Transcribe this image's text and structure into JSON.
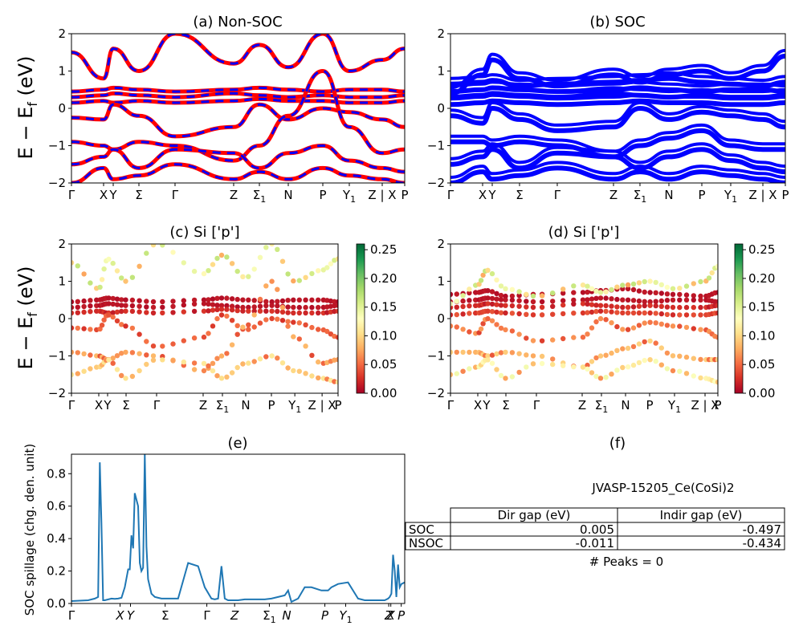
{
  "chart_data": [
    {
      "type": "line",
      "title": "(a) Non-SOC",
      "ylabel": "E − E_f (eV)",
      "ylim": [
        -2,
        2
      ],
      "yticks": [
        "2",
        "1",
        "0",
        "−1",
        "−2"
      ],
      "xticks": [
        "Γ",
        "X",
        "Y",
        "Σ",
        "Γ",
        "Z",
        "Σ",
        "N",
        "P",
        "Y",
        "Z | X",
        "P"
      ],
      "xtick_subscripts": {
        "6": "1",
        "9": "1"
      },
      "series": [
        {
          "color": "#ff0000",
          "style": "solid"
        },
        {
          "color": "#0000ff",
          "style": "dashed"
        }
      ],
      "bands": [
        [
          0.45,
          0.5,
          0.55,
          0.5,
          0.45,
          0.5,
          0.55,
          0.5,
          0.45,
          0.5,
          0.5,
          0.45
        ],
        [
          0.3,
          0.35,
          0.4,
          0.35,
          0.3,
          0.4,
          0.35,
          0.3,
          0.35,
          0.3,
          0.3,
          0.35
        ],
        [
          0.15,
          0.2,
          0.15,
          0.2,
          0.15,
          0.2,
          0.25,
          0.2,
          0.2,
          0.15,
          0.15,
          0.2
        ],
        [
          -0.25,
          -0.3,
          0.1,
          -0.2,
          -0.75,
          -0.5,
          0.1,
          -0.3,
          0.0,
          -0.1,
          -0.3,
          -0.5
        ],
        [
          -0.9,
          -1.0,
          -1.1,
          -0.9,
          -1.0,
          -1.4,
          -1.0,
          -0.2,
          1.0,
          -0.5,
          -1.2,
          -1.1
        ],
        [
          -1.5,
          -1.3,
          -1.1,
          -1.6,
          -1.1,
          -1.2,
          -1.6,
          -1.2,
          -1.0,
          -1.4,
          -1.6,
          -1.7
        ],
        [
          -2.0,
          -1.6,
          -1.9,
          -1.8,
          -1.5,
          -1.9,
          -1.7,
          -1.9,
          -1.6,
          -1.8,
          -1.9,
          -2.0
        ],
        [
          1.5,
          0.8,
          1.6,
          1.0,
          2.0,
          1.2,
          1.7,
          1.1,
          2.0,
          1.0,
          1.3,
          1.6
        ]
      ]
    },
    {
      "type": "line",
      "title": "(b) SOC",
      "ylim": [
        -2,
        2
      ],
      "yticks": [
        "2",
        "1",
        "0",
        "−1",
        "−2"
      ],
      "xticks": [
        "Γ",
        "X",
        "Y",
        "Σ",
        "Γ",
        "Z",
        "Σ",
        "N",
        "P",
        "Y",
        "Z | X",
        "P"
      ],
      "xtick_subscripts": {
        "6": "1",
        "9": "1"
      },
      "series": [
        {
          "color": "#0000ff",
          "style": "solid"
        }
      ],
      "bands": [
        [
          0.65,
          0.7,
          0.75,
          0.6,
          0.65,
          0.7,
          0.75,
          0.8,
          0.7,
          0.65,
          0.6,
          0.7
        ],
        [
          0.45,
          0.5,
          0.55,
          0.5,
          0.45,
          0.5,
          0.55,
          0.5,
          0.45,
          0.5,
          0.5,
          0.45
        ],
        [
          0.3,
          0.35,
          0.4,
          0.35,
          0.3,
          0.4,
          0.35,
          0.3,
          0.35,
          0.3,
          0.3,
          0.35
        ],
        [
          0.1,
          0.15,
          0.2,
          0.15,
          0.1,
          0.15,
          0.2,
          0.15,
          0.15,
          0.1,
          0.1,
          0.15
        ],
        [
          -0.2,
          -0.4,
          0.0,
          -0.3,
          -0.6,
          -0.5,
          0.0,
          -0.3,
          -0.1,
          -0.2,
          -0.3,
          -0.5
        ],
        [
          -0.9,
          -0.9,
          -1.0,
          -0.9,
          -1.0,
          -1.3,
          -1.0,
          -0.8,
          -0.6,
          -1.0,
          -1.1,
          -1.1
        ],
        [
          -1.5,
          -1.3,
          -1.1,
          -1.6,
          -1.2,
          -1.3,
          -1.6,
          -1.3,
          -1.1,
          -1.4,
          -1.6,
          -1.7
        ],
        [
          -2.0,
          -1.7,
          -1.9,
          -1.8,
          -1.6,
          -1.9,
          -1.7,
          -1.9,
          -1.7,
          -1.8,
          -1.9,
          -2.0
        ],
        [
          0.4,
          0.9,
          1.3,
          0.8,
          0.6,
          0.9,
          0.7,
          0.9,
          1.0,
          0.8,
          1.0,
          1.4
        ]
      ]
    },
    {
      "type": "scatter",
      "title": "(c)  Si ['p']",
      "ylabel": "E − E_f (eV)",
      "ylim": [
        -2,
        2
      ],
      "yticks": [
        "2",
        "1",
        "0",
        "−1",
        "−2"
      ],
      "xticks": [
        "Γ",
        "X",
        "Y",
        "Σ",
        "Γ",
        "Z",
        "Σ",
        "N",
        "P",
        "Y",
        "Z | X",
        "P"
      ],
      "xtick_subscripts": {
        "6": "1",
        "9": "1"
      },
      "colorbar": {
        "ticks": [
          "0.25",
          "0.20",
          "0.15",
          "0.10",
          "0.05",
          "0.00"
        ],
        "cmap": "RdYlGn"
      },
      "bands": [
        [
          0.45,
          0.5,
          0.55,
          0.5,
          0.45,
          0.5,
          0.55,
          0.5,
          0.45,
          0.5,
          0.5,
          0.45
        ],
        [
          0.3,
          0.35,
          0.4,
          0.35,
          0.3,
          0.4,
          0.35,
          0.3,
          0.35,
          0.3,
          0.3,
          0.35
        ],
        [
          0.15,
          0.2,
          0.15,
          0.2,
          0.15,
          0.2,
          0.25,
          0.2,
          0.2,
          0.15,
          0.15,
          0.2
        ],
        [
          -0.25,
          -0.3,
          0.1,
          -0.2,
          -0.75,
          -0.5,
          0.1,
          -0.3,
          0.0,
          -0.1,
          -0.3,
          -0.5
        ],
        [
          -0.9,
          -1.0,
          -1.1,
          -0.9,
          -1.0,
          -1.4,
          -1.0,
          -0.2,
          1.0,
          -0.5,
          -1.2,
          -1.1
        ],
        [
          -1.5,
          -1.3,
          -1.1,
          -1.6,
          -1.1,
          -1.2,
          -1.6,
          -1.2,
          -1.0,
          -1.4,
          -1.6,
          -1.7
        ],
        [
          1.5,
          0.8,
          1.6,
          1.0,
          2.0,
          1.2,
          1.7,
          1.1,
          2.0,
          1.0,
          1.3,
          1.6
        ]
      ],
      "weights": [
        0.01,
        0.01,
        0.02,
        0.04,
        0.06,
        0.08,
        0.12
      ]
    },
    {
      "type": "scatter",
      "title": "(d) Si ['p']",
      "ylim": [
        -2,
        2
      ],
      "yticks": [
        "2",
        "1",
        "0",
        "−1",
        "−2"
      ],
      "xticks": [
        "Γ",
        "X",
        "Y",
        "Σ",
        "Γ",
        "Z",
        "Σ",
        "N",
        "P",
        "Y",
        "Z | X",
        "P"
      ],
      "xtick_subscripts": {
        "6": "1",
        "9": "1"
      },
      "colorbar": {
        "ticks": [
          "0.25",
          "0.20",
          "0.15",
          "0.10",
          "0.05",
          "0.00"
        ],
        "cmap": "RdYlGn"
      },
      "bands": [
        [
          0.65,
          0.7,
          0.75,
          0.6,
          0.65,
          0.7,
          0.75,
          0.8,
          0.7,
          0.65,
          0.6,
          0.7
        ],
        [
          0.45,
          0.5,
          0.55,
          0.5,
          0.45,
          0.5,
          0.55,
          0.5,
          0.45,
          0.5,
          0.5,
          0.45
        ],
        [
          0.3,
          0.35,
          0.4,
          0.35,
          0.3,
          0.4,
          0.35,
          0.3,
          0.35,
          0.3,
          0.3,
          0.35
        ],
        [
          0.1,
          0.15,
          0.2,
          0.15,
          0.1,
          0.15,
          0.2,
          0.15,
          0.15,
          0.1,
          0.1,
          0.15
        ],
        [
          -0.2,
          -0.4,
          0.0,
          -0.3,
          -0.6,
          -0.5,
          0.0,
          -0.3,
          -0.1,
          -0.2,
          -0.3,
          -0.5
        ],
        [
          -0.9,
          -0.9,
          -1.0,
          -0.9,
          -1.0,
          -1.3,
          -1.0,
          -0.8,
          -0.6,
          -1.0,
          -1.1,
          -1.1
        ],
        [
          -1.5,
          -1.3,
          -1.1,
          -1.6,
          -1.2,
          -1.3,
          -1.6,
          -1.3,
          -1.1,
          -1.4,
          -1.6,
          -1.7
        ],
        [
          0.4,
          0.9,
          1.3,
          0.8,
          0.6,
          0.9,
          0.7,
          0.9,
          1.0,
          0.8,
          1.0,
          1.4
        ]
      ],
      "weights": [
        0.01,
        0.01,
        0.02,
        0.03,
        0.05,
        0.07,
        0.1,
        0.12
      ]
    },
    {
      "type": "line",
      "title": "(e)",
      "ylabel": "SOC spillage (chg. den. unit)",
      "ylim": [
        0,
        0.92
      ],
      "yticks": [
        "0.8",
        "0.6",
        "0.4",
        "0.2",
        "0.0"
      ],
      "ytick_values": [
        0.8,
        0.6,
        0.4,
        0.2,
        0.0
      ],
      "xticks": [
        "Γ",
        "X",
        "Y",
        "Σ",
        "Γ",
        "Z",
        "Σ",
        "N",
        "P",
        "Y",
        "Z",
        "X",
        "P"
      ],
      "xtick_positions": [
        0,
        0.1458,
        0.1771,
        0.2812,
        0.4062,
        0.4896,
        0.5938,
        0.6458,
        0.7604,
        0.8229,
        0.9521,
        0.9583,
        0.9896
      ],
      "xtick_subscripts": {
        "6": "1",
        "9": "1"
      },
      "color": "#1f77b4",
      "x": [
        0,
        0.05,
        0.07,
        0.08,
        0.085,
        0.09,
        0.095,
        0.1,
        0.12,
        0.13,
        0.14,
        0.15,
        0.16,
        0.17,
        0.175,
        0.18,
        0.185,
        0.19,
        0.2,
        0.205,
        0.21,
        0.215,
        0.22,
        0.225,
        0.23,
        0.24,
        0.25,
        0.26,
        0.27,
        0.28,
        0.3,
        0.32,
        0.35,
        0.38,
        0.4,
        0.42,
        0.43,
        0.44,
        0.45,
        0.46,
        0.47,
        0.48,
        0.49,
        0.5,
        0.52,
        0.55,
        0.58,
        0.6,
        0.62,
        0.64,
        0.65,
        0.66,
        0.68,
        0.7,
        0.72,
        0.75,
        0.77,
        0.78,
        0.8,
        0.83,
        0.86,
        0.88,
        0.9,
        0.92,
        0.94,
        0.95,
        0.955,
        0.96,
        0.965,
        0.97,
        0.975,
        0.98,
        0.985,
        0.99,
        1.0
      ],
      "y": [
        0.015,
        0.02,
        0.03,
        0.04,
        0.87,
        0.5,
        0.02,
        0.02,
        0.03,
        0.028,
        0.03,
        0.035,
        0.1,
        0.21,
        0.21,
        0.42,
        0.34,
        0.68,
        0.6,
        0.25,
        0.2,
        0.22,
        0.92,
        0.35,
        0.15,
        0.06,
        0.04,
        0.035,
        0.03,
        0.03,
        0.03,
        0.03,
        0.25,
        0.23,
        0.1,
        0.03,
        0.025,
        0.03,
        0.23,
        0.03,
        0.02,
        0.02,
        0.02,
        0.02,
        0.025,
        0.025,
        0.025,
        0.03,
        0.04,
        0.05,
        0.08,
        0.01,
        0.03,
        0.1,
        0.1,
        0.08,
        0.08,
        0.1,
        0.12,
        0.13,
        0.03,
        0.02,
        0.02,
        0.02,
        0.02,
        0.03,
        0.04,
        0.06,
        0.3,
        0.2,
        0.04,
        0.24,
        0.1,
        0.12,
        0.13
      ]
    }
  ],
  "panel_f": {
    "title": "(f)",
    "name": "JVASP-15205_Ce(CoSi)2",
    "header": [
      "",
      "Dir gap (eV)",
      "Indir gap (eV)"
    ],
    "rows": [
      [
        "SOC",
        "0.005",
        "-0.497"
      ],
      [
        "NSOC",
        "-0.011",
        "-0.434"
      ]
    ],
    "footer": "# Peaks = 0"
  }
}
